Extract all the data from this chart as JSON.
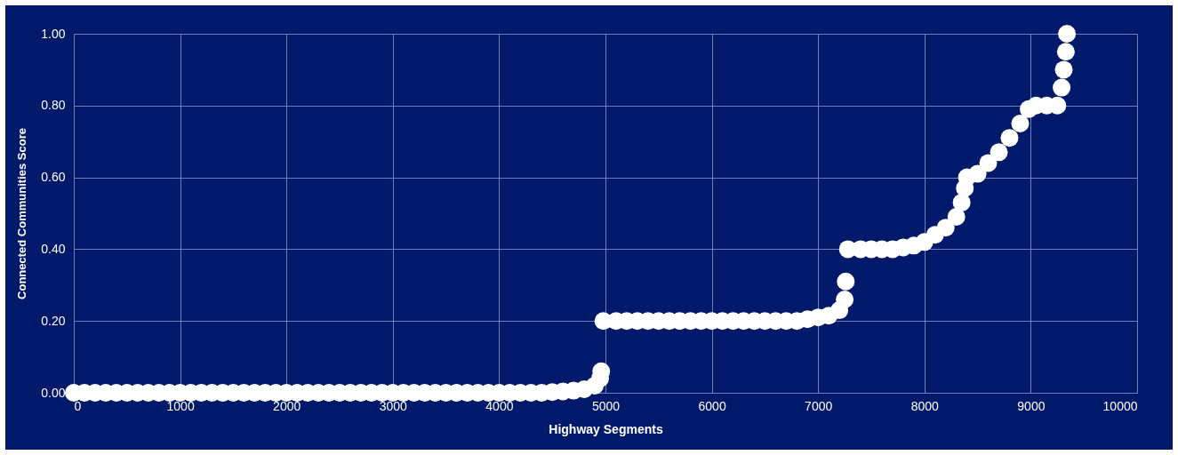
{
  "chart_data": {
    "type": "scatter",
    "xlabel": "Highway Segments",
    "ylabel": "Connected Communities Score",
    "x": [
      0,
      100,
      200,
      300,
      400,
      500,
      600,
      700,
      800,
      900,
      1000,
      1100,
      1200,
      1300,
      1400,
      1500,
      1600,
      1700,
      1800,
      1900,
      2000,
      2100,
      2200,
      2300,
      2400,
      2500,
      2600,
      2700,
      2800,
      2900,
      3000,
      3100,
      3200,
      3300,
      3400,
      3500,
      3600,
      3700,
      3800,
      3900,
      4000,
      4100,
      4200,
      4300,
      4400,
      4500,
      4600,
      4700,
      4800,
      4900,
      4950,
      4960,
      4980,
      5100,
      5200,
      5300,
      5400,
      5500,
      5600,
      5700,
      5800,
      5900,
      6000,
      6100,
      6200,
      6300,
      6400,
      6500,
      6600,
      6700,
      6800,
      6900,
      7000,
      7100,
      7200,
      7250,
      7260,
      7280,
      7400,
      7500,
      7600,
      7700,
      7800,
      7900,
      8000,
      8100,
      8200,
      8300,
      8350,
      8380,
      8400,
      8500,
      8600,
      8700,
      8800,
      8900,
      8980,
      9050,
      9150,
      9250,
      9290,
      9310,
      9330,
      9340
    ],
    "series": [
      {
        "color": "#ffffff",
        "values": [
          0,
          0,
          0,
          0,
          0,
          0,
          0,
          0,
          0,
          0,
          0,
          0,
          0,
          0,
          0,
          0,
          0,
          0,
          0,
          0,
          0,
          0,
          0,
          0,
          0,
          0,
          0,
          0,
          0,
          0,
          0,
          0,
          0,
          0,
          0,
          0,
          0,
          0,
          0,
          0,
          0,
          0,
          0,
          0,
          0,
          0.002,
          0.004,
          0.006,
          0.01,
          0.02,
          0.04,
          0.06,
          0.2,
          0.2,
          0.2,
          0.2,
          0.2,
          0.2,
          0.2,
          0.2,
          0.2,
          0.2,
          0.2,
          0.2,
          0.2,
          0.2,
          0.2,
          0.2,
          0.2,
          0.2,
          0.2,
          0.205,
          0.21,
          0.215,
          0.23,
          0.26,
          0.31,
          0.4,
          0.4,
          0.4,
          0.4,
          0.4,
          0.405,
          0.41,
          0.42,
          0.44,
          0.46,
          0.49,
          0.53,
          0.57,
          0.6,
          0.61,
          0.64,
          0.67,
          0.71,
          0.75,
          0.79,
          0.8,
          0.8,
          0.8,
          0.85,
          0.9,
          0.95,
          1.0
        ]
      }
    ],
    "xlim": [
      0,
      10000
    ],
    "xticks": [
      0,
      1000,
      2000,
      3000,
      4000,
      5000,
      6000,
      7000,
      8000,
      9000,
      10000
    ],
    "ylim": [
      0,
      1
    ],
    "yticks": [
      {
        "value": 0,
        "label": "0.00"
      },
      {
        "value": 0.2,
        "label": "0.20"
      },
      {
        "value": 0.4,
        "label": "0.40"
      },
      {
        "value": 0.6,
        "label": "0.60"
      },
      {
        "value": 0.8,
        "label": "0.80"
      },
      {
        "value": 1,
        "label": "1.00"
      }
    ],
    "grid": true,
    "marker": "circle"
  }
}
